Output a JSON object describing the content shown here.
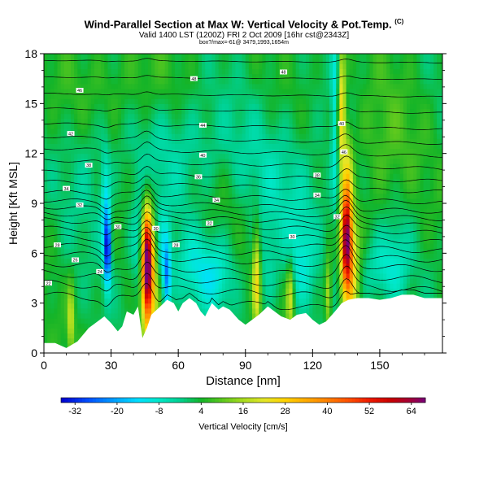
{
  "header": {
    "title": "Wind-Parallel Section at Max W: Vertical Velocity & Pot.Temp.",
    "title_mark": "(C)",
    "subtitle": "Valid 1400 LST (1200Z) FRI 2 Oct 2009 [16hr cst@2343Z]",
    "subtitle2": "box?/max=-61@ 3479,1993,1654m"
  },
  "chart_data": {
    "type": "heatmap",
    "xlabel": "Distance [nm]",
    "ylabel": "Height [Kft MSL]",
    "xlim": [
      0,
      178
    ],
    "ylim": [
      0,
      18
    ],
    "x_ticks": [
      "0",
      "30",
      "60",
      "90",
      "120",
      "150"
    ],
    "x_tick_values": [
      0,
      30,
      60,
      90,
      120,
      150
    ],
    "y_ticks": [
      "0",
      "3",
      "6",
      "9",
      "12",
      "15",
      "18"
    ],
    "y_tick_values": [
      0,
      3,
      6,
      9,
      12,
      15,
      18
    ],
    "colorbar": {
      "label": "Vertical Velocity [cm/s]",
      "ticks": [
        "-32",
        "-20",
        "-8",
        "4",
        "16",
        "28",
        "40",
        "52",
        "64"
      ],
      "tick_values": [
        -32,
        -20,
        -8,
        4,
        16,
        28,
        40,
        52,
        64
      ],
      "range": [
        -36,
        68
      ]
    },
    "background_value": 3,
    "terrain_top_kft": [
      [
        0,
        0.6
      ],
      [
        5,
        0.6
      ],
      [
        10,
        0.3
      ],
      [
        15,
        0.7
      ],
      [
        20,
        1.5
      ],
      [
        25,
        2.0
      ],
      [
        27,
        2.2
      ],
      [
        30,
        1.8
      ],
      [
        33,
        1.3
      ],
      [
        35,
        1.6
      ],
      [
        37,
        2.5
      ],
      [
        40,
        2.3
      ],
      [
        42,
        2.8
      ],
      [
        44,
        0.9
      ],
      [
        46,
        1.5
      ],
      [
        48,
        2.3
      ],
      [
        52,
        2.8
      ],
      [
        55,
        3.2
      ],
      [
        58,
        3.0
      ],
      [
        60,
        2.5
      ],
      [
        62,
        3.0
      ],
      [
        65,
        3.3
      ],
      [
        68,
        3.0
      ],
      [
        70,
        2.5
      ],
      [
        72,
        2.2
      ],
      [
        75,
        3.0
      ],
      [
        78,
        2.6
      ],
      [
        80,
        2.8
      ],
      [
        83,
        2.6
      ],
      [
        87,
        2.0
      ],
      [
        90,
        1.7
      ],
      [
        93,
        2.0
      ],
      [
        96,
        2.3
      ],
      [
        100,
        2.8
      ],
      [
        103,
        2.5
      ],
      [
        106,
        2.2
      ],
      [
        110,
        2.0
      ],
      [
        113,
        2.3
      ],
      [
        117,
        2.4
      ],
      [
        120,
        2.0
      ],
      [
        123,
        1.7
      ],
      [
        126,
        1.9
      ],
      [
        130,
        2.5
      ],
      [
        133,
        3.0
      ],
      [
        136,
        3.2
      ],
      [
        140,
        3.3
      ],
      [
        145,
        3.3
      ],
      [
        150,
        3.2
      ],
      [
        155,
        3.3
      ],
      [
        160,
        3.5
      ],
      [
        165,
        3.5
      ],
      [
        170,
        3.3
      ],
      [
        178,
        3.3
      ]
    ],
    "features": [
      {
        "x": 46,
        "y": 5.5,
        "sx": 1.6,
        "sy": 2.2,
        "w": 62
      },
      {
        "x": 47.5,
        "y": 4.0,
        "sx": 2.5,
        "sy": 2.8,
        "w": 22
      },
      {
        "x": 135,
        "y": 7.0,
        "sx": 1.6,
        "sy": 2.0,
        "w": 55
      },
      {
        "x": 137,
        "y": 5.0,
        "sx": 2.5,
        "sy": 2.5,
        "w": 24
      },
      {
        "x": 133,
        "y": 14.5,
        "sx": 1.2,
        "sy": 2.8,
        "w": 25
      },
      {
        "x": 136,
        "y": 11.0,
        "sx": 1.5,
        "sy": 2.0,
        "w": 14
      },
      {
        "x": 130,
        "y": 14.0,
        "sx": 1.2,
        "sy": 4.0,
        "w": -12
      },
      {
        "x": 28.5,
        "y": 6.2,
        "sx": 1.0,
        "sy": 1.5,
        "w": -34
      },
      {
        "x": 27.5,
        "y": 8.5,
        "sx": 1.5,
        "sy": 2.5,
        "w": -14
      },
      {
        "x": 55,
        "y": 4.5,
        "sx": 1.2,
        "sy": 1.5,
        "w": -22
      },
      {
        "x": 53,
        "y": 6.0,
        "sx": 2.2,
        "sy": 2.0,
        "w": -10
      },
      {
        "x": 43,
        "y": 6.5,
        "sx": 3.0,
        "sy": 2.0,
        "w": -12
      },
      {
        "x": 95,
        "y": 4.5,
        "sx": 1.2,
        "sy": 2.2,
        "w": 22
      },
      {
        "x": 110,
        "y": 3.5,
        "sx": 1.2,
        "sy": 1.5,
        "w": 18
      },
      {
        "x": 127,
        "y": 3.5,
        "sx": 1.0,
        "sy": 1.5,
        "w": 16
      },
      {
        "x": 12,
        "y": 2.0,
        "sx": 1.0,
        "sy": 1.5,
        "w": 16
      },
      {
        "x": 68,
        "y": 5.0,
        "sx": 7.0,
        "sy": 1.6,
        "w": -10
      },
      {
        "x": 78,
        "y": 4.5,
        "sx": 5.0,
        "sy": 1.5,
        "w": -8
      },
      {
        "x": 150,
        "y": 5.0,
        "sx": 6.0,
        "sy": 1.5,
        "w": -10
      },
      {
        "x": 158,
        "y": 5.5,
        "sx": 4.0,
        "sy": 2.0,
        "w": -6
      },
      {
        "x": 115,
        "y": 5.5,
        "sx": 4.0,
        "sy": 2.0,
        "w": -9
      },
      {
        "x": 100,
        "y": 5.0,
        "sx": 3.0,
        "sy": 2.0,
        "w": -6
      },
      {
        "x": 100,
        "y": 10.0,
        "sx": 25.0,
        "sy": 3.0,
        "w": -7
      },
      {
        "x": 60,
        "y": 13.0,
        "sx": 15.0,
        "sy": 3.0,
        "w": -6
      },
      {
        "x": 20,
        "y": 11.0,
        "sx": 8.0,
        "sy": 3.0,
        "w": -5
      },
      {
        "x": 150,
        "y": 12.0,
        "sx": 10.0,
        "sy": 3.0,
        "w": 6
      },
      {
        "x": 40,
        "y": 16.0,
        "sx": 20.0,
        "sy": 2.0,
        "w": 5
      },
      {
        "x": 80,
        "y": 9.0,
        "sx": 12.0,
        "sy": 2.0,
        "w": 5
      }
    ],
    "contours": {
      "base_levels": [
        3.5,
        4.2,
        4.8,
        5.4,
        6.0,
        6.5,
        7.0,
        7.5,
        8.0,
        8.4,
        8.8,
        9.2,
        9.7,
        10.3,
        10.9,
        11.6,
        12.3,
        13.0,
        13.8,
        14.7,
        15.6,
        16.6,
        17.6
      ]
    },
    "contour_labels": [
      {
        "x": 16,
        "y": 15.8,
        "label": "46"
      },
      {
        "x": 12,
        "y": 13.2,
        "label": "42"
      },
      {
        "x": 20,
        "y": 11.3,
        "label": "38"
      },
      {
        "x": 10,
        "y": 9.9,
        "label": "34"
      },
      {
        "x": 16,
        "y": 8.9,
        "label": "32"
      },
      {
        "x": 33,
        "y": 7.6,
        "label": "30"
      },
      {
        "x": 6,
        "y": 6.5,
        "label": "28"
      },
      {
        "x": 14,
        "y": 5.6,
        "label": "26"
      },
      {
        "x": 25,
        "y": 4.9,
        "label": "24"
      },
      {
        "x": 2,
        "y": 4.2,
        "label": "22"
      },
      {
        "x": 67,
        "y": 16.5,
        "label": "48"
      },
      {
        "x": 71,
        "y": 13.7,
        "label": "44"
      },
      {
        "x": 71,
        "y": 11.9,
        "label": "40"
      },
      {
        "x": 69,
        "y": 10.6,
        "label": "36"
      },
      {
        "x": 77,
        "y": 9.2,
        "label": "34"
      },
      {
        "x": 74,
        "y": 7.8,
        "label": "32"
      },
      {
        "x": 50,
        "y": 7.5,
        "label": "30"
      },
      {
        "x": 59,
        "y": 6.5,
        "label": "28"
      },
      {
        "x": 107,
        "y": 16.9,
        "label": "48"
      },
      {
        "x": 111,
        "y": 7.0,
        "label": "30"
      },
      {
        "x": 122,
        "y": 10.7,
        "label": "38"
      },
      {
        "x": 122,
        "y": 9.5,
        "label": "34"
      },
      {
        "x": 131,
        "y": 8.2,
        "label": "32"
      },
      {
        "x": 133,
        "y": 13.8,
        "label": "40"
      },
      {
        "x": 134,
        "y": 12.1,
        "label": "46"
      }
    ]
  }
}
